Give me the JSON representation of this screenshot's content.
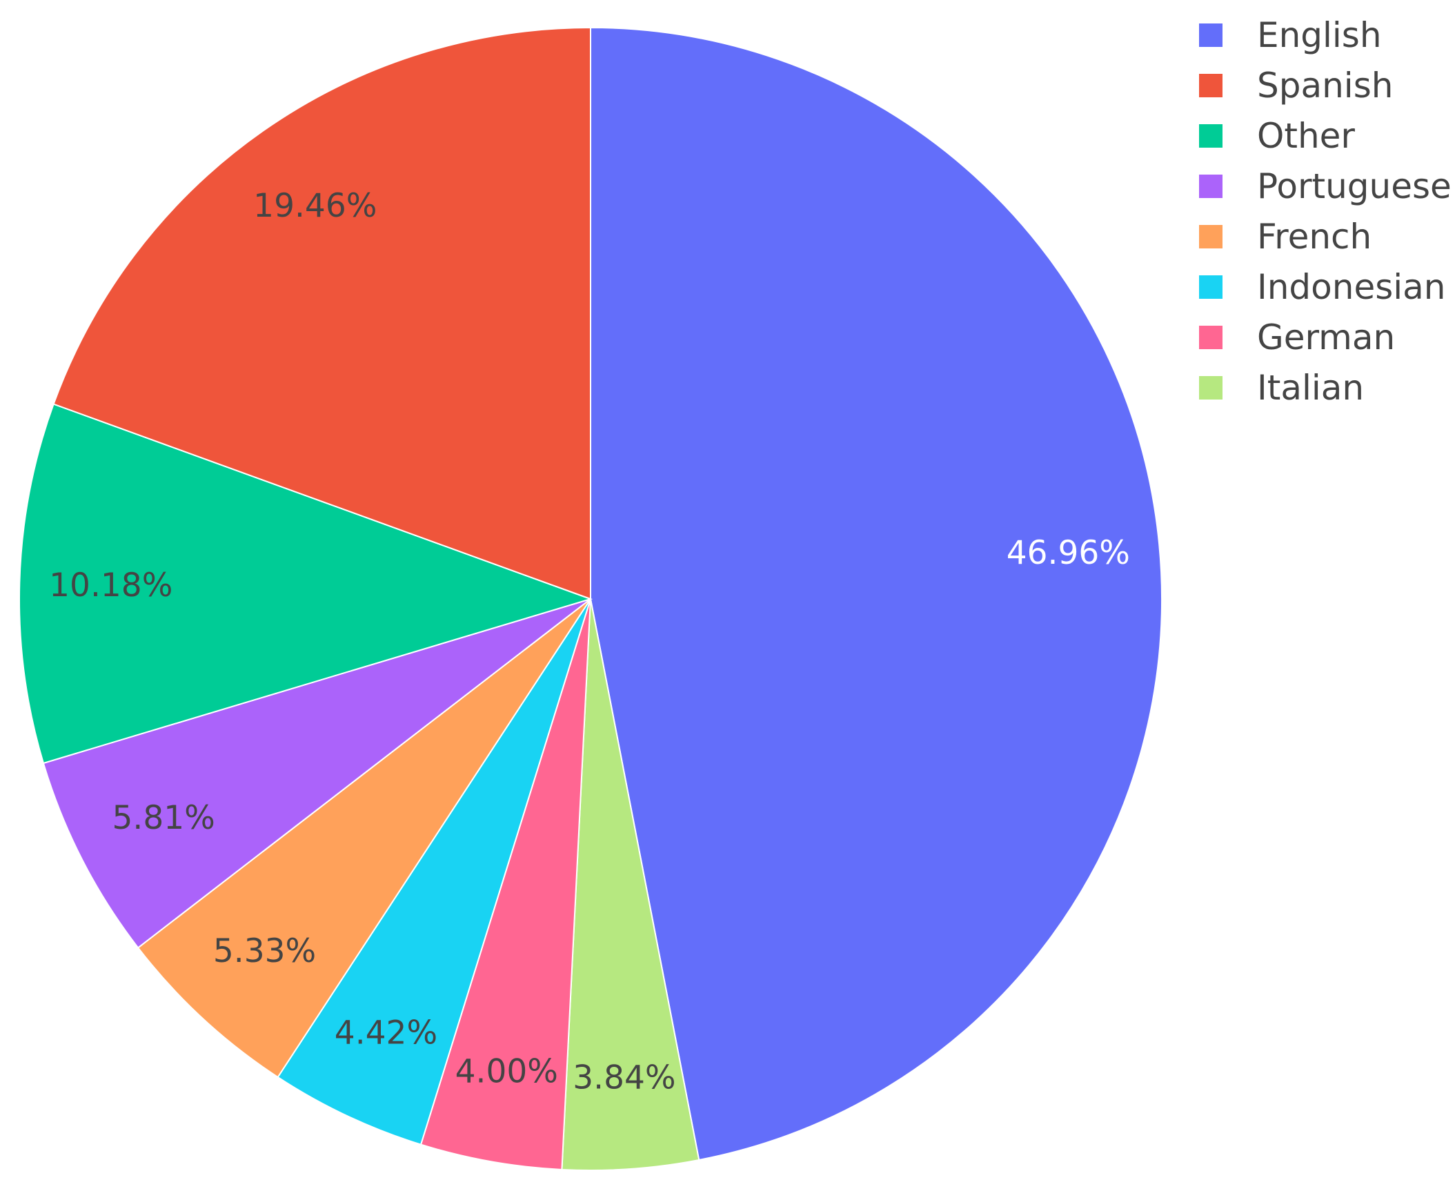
{
  "chart_data": {
    "type": "pie",
    "direction": "clockwise",
    "start": "12 o'clock",
    "legend": "top-right",
    "slices": [
      {
        "label": "English",
        "value": 46.96,
        "text": "46.96%",
        "color": "#636EFA",
        "text_color": "#ffffff"
      },
      {
        "label": "Italian",
        "value": 3.84,
        "text": "3.84%",
        "color": "#B6E880",
        "text_color": "#444444"
      },
      {
        "label": "German",
        "value": 4.0,
        "text": "4.00%",
        "color": "#FF6692",
        "text_color": "#444444"
      },
      {
        "label": "Indonesian",
        "value": 4.42,
        "text": "4.42%",
        "color": "#19D3F3",
        "text_color": "#444444"
      },
      {
        "label": "French",
        "value": 5.33,
        "text": "5.33%",
        "color": "#FFA15A",
        "text_color": "#444444"
      },
      {
        "label": "Portuguese",
        "value": 5.81,
        "text": "5.81%",
        "color": "#AB63FA",
        "text_color": "#444444"
      },
      {
        "label": "Other",
        "value": 10.18,
        "text": "10.18%",
        "color": "#00CC96",
        "text_color": "#444444"
      },
      {
        "label": "Spanish",
        "value": 19.46,
        "text": "19.46%",
        "color": "#EF553B",
        "text_color": "#444444"
      }
    ],
    "legend_entries": [
      "English",
      "Spanish",
      "Other",
      "Portuguese",
      "French",
      "Indonesian",
      "German",
      "Italian"
    ]
  }
}
